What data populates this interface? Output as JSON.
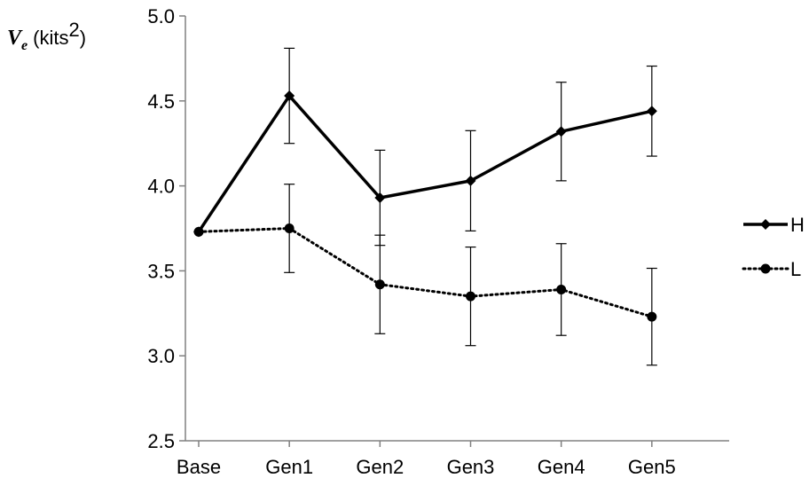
{
  "chart_data": {
    "type": "line",
    "ylabel": {
      "symbol": "V",
      "subscript": "e",
      "unit_prefix": "(kits",
      "unit_power": "2",
      "unit_suffix": ")"
    },
    "categories": [
      "Base",
      "Gen1",
      "Gen2",
      "Gen3",
      "Gen4",
      "Gen5"
    ],
    "y_tick_labels": [
      "2.5",
      "3.0",
      "3.5",
      "4.0",
      "4.5",
      "5.0"
    ],
    "ylim": [
      2.5,
      5.0
    ],
    "grid": false,
    "legend_position": "right",
    "series": [
      {
        "name": "H",
        "line_style": "solid",
        "marker": "diamond",
        "color": "#000000",
        "values": [
          3.73,
          4.53,
          3.93,
          4.03,
          4.32,
          4.44
        ],
        "error": [
          0.0,
          0.28,
          0.28,
          0.295,
          0.29,
          0.265
        ]
      },
      {
        "name": "L",
        "line_style": "dotted",
        "marker": "circle",
        "color": "#000000",
        "values": [
          3.73,
          3.75,
          3.42,
          3.35,
          3.39,
          3.23
        ],
        "error": [
          0.0,
          0.26,
          0.29,
          0.29,
          0.27,
          0.285
        ]
      }
    ]
  }
}
